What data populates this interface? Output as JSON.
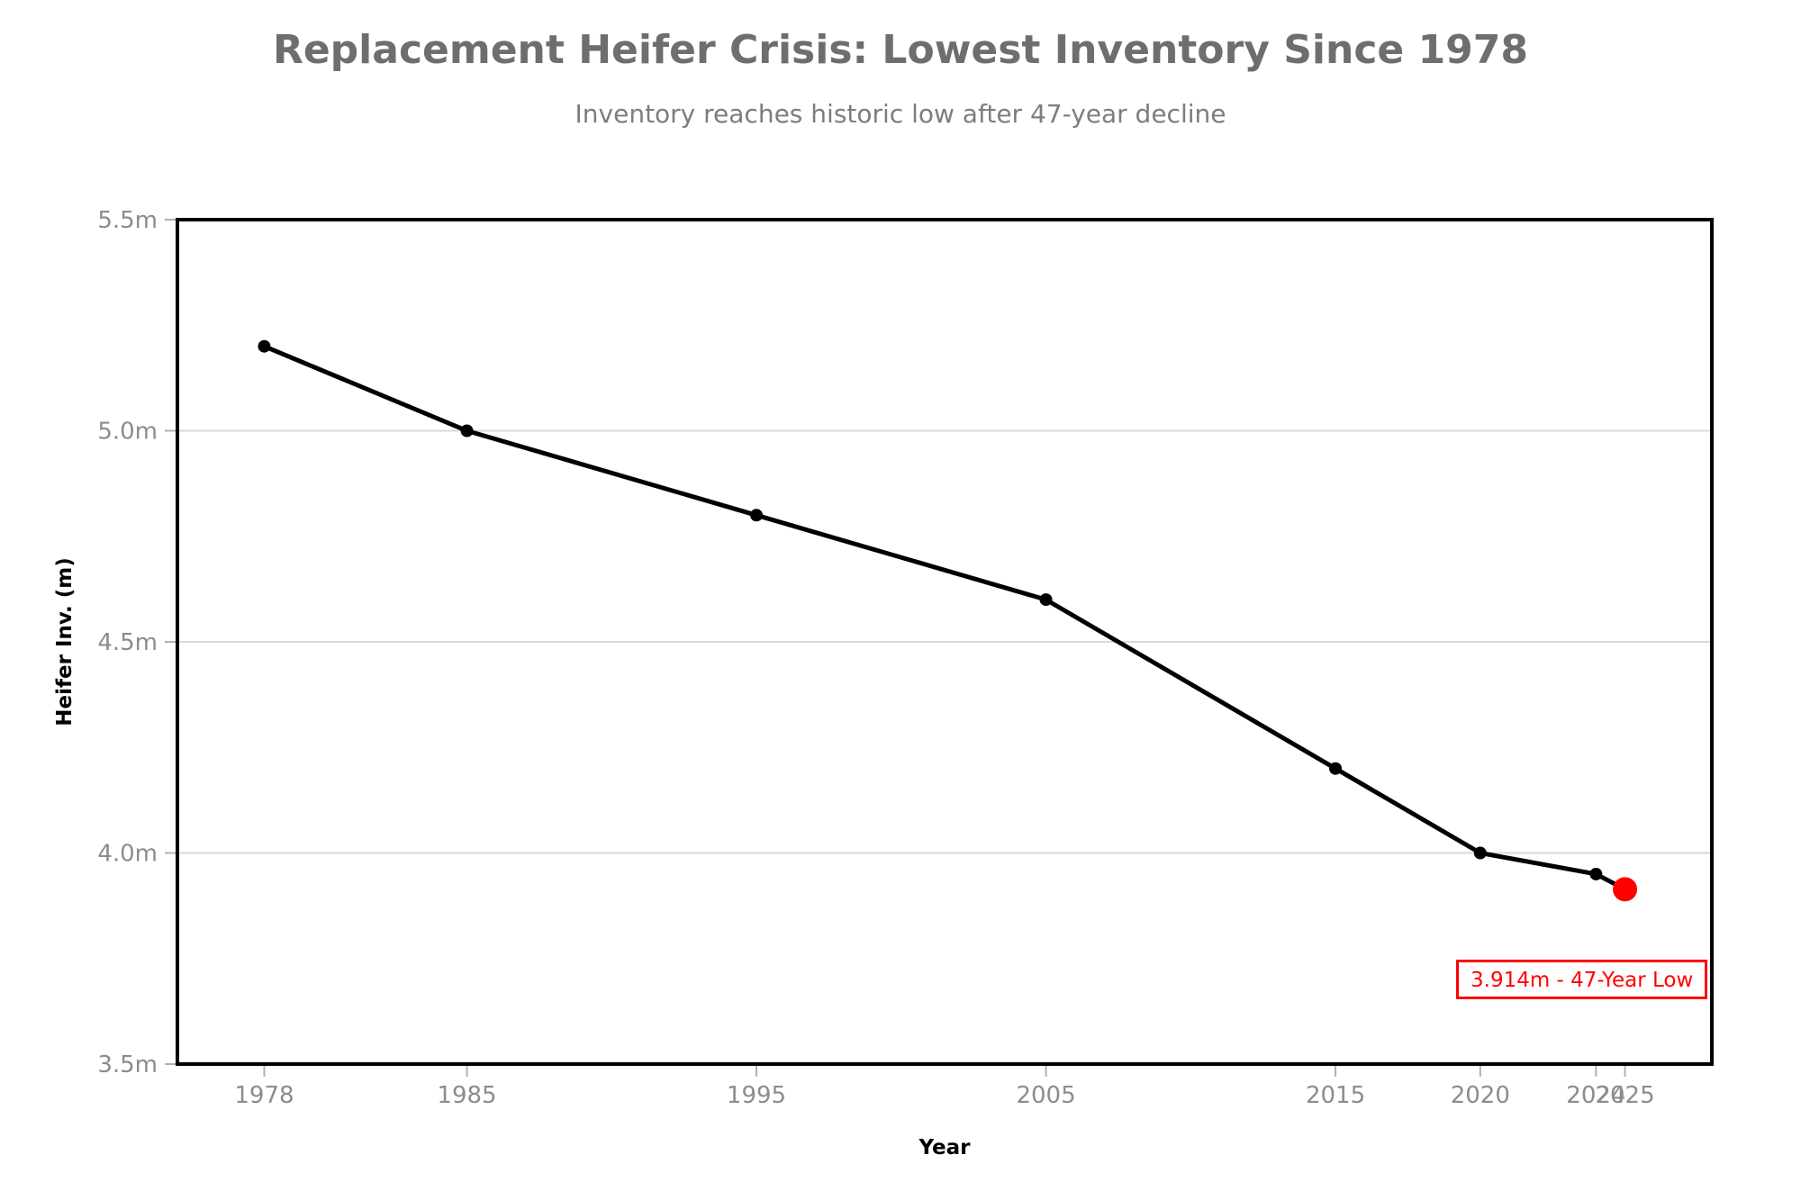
{
  "chart_data": {
    "type": "line",
    "title": "Replacement Heifer Crisis: Lowest Inventory Since 1978",
    "subtitle": "Inventory reaches historic low after 47-year decline",
    "xlabel": "Year",
    "ylabel": "Heifer Inv. (m)",
    "x": [
      1978,
      1985,
      1995,
      2005,
      2015,
      2020,
      2024,
      2025
    ],
    "y": [
      5.2,
      5.0,
      4.8,
      4.6,
      4.2,
      4.0,
      3.95,
      3.914
    ],
    "xlim": [
      1975,
      2028
    ],
    "ylim": [
      3.5,
      5.5
    ],
    "x_ticks": [
      1978,
      1985,
      1995,
      2005,
      2015,
      2020,
      2024,
      2025
    ],
    "x_tick_labels": [
      "1978",
      "1985",
      "1995",
      "2005",
      "2015",
      "2020",
      "2024",
      "2025"
    ],
    "y_ticks": [
      3.5,
      4.0,
      4.5,
      5.0,
      5.5
    ],
    "y_tick_labels": [
      "3.5m",
      "4.0m",
      "4.5m",
      "5.0m",
      "5.5m"
    ],
    "grid": "horizontal",
    "legend": "none",
    "line_color": "#000000",
    "marker_color": "#000000",
    "grid_color": "#d9d9d9",
    "tick_mark_color": "#b0b0b0",
    "tick_label_color": "#8c8c8c",
    "border_color": "#000000",
    "highlight_index": 7,
    "highlight_color": "#ff0000",
    "highlight_value_label": "3.914m",
    "annotation": {
      "text": "3.914m - 47-Year Low",
      "color": "#ff0000"
    }
  }
}
